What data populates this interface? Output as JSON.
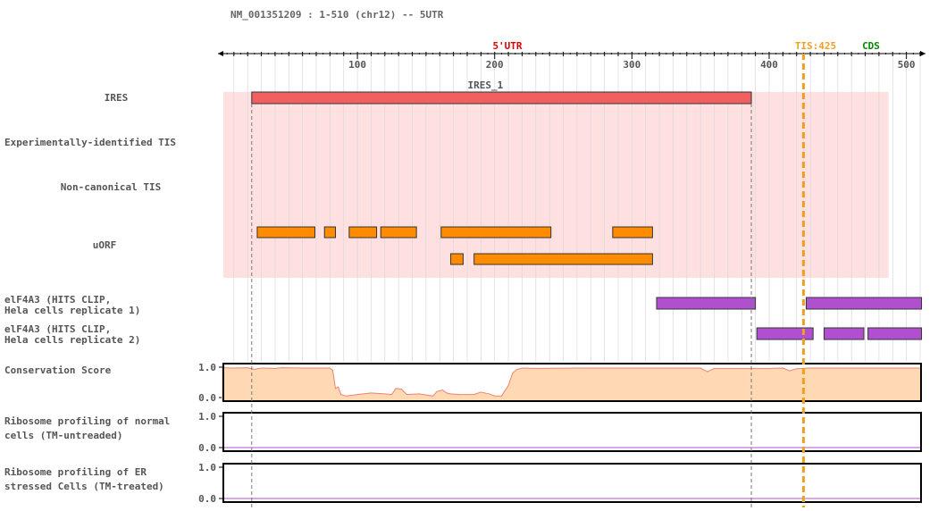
{
  "header": {
    "title": "NM_001351209 : 1-510 (chr12) -- 5UTR"
  },
  "axis": {
    "min": 1,
    "max": 510,
    "ticks": [
      100,
      200,
      300,
      400,
      500
    ],
    "minor_step": 10
  },
  "regions": {
    "utr_label": "5'UTR",
    "utr_color": "#dd0000",
    "tis_label": "TIS:425",
    "tis_position": 425,
    "tis_color": "#f0a020",
    "cds_label": "CDS",
    "cds_color": "#008800"
  },
  "ires": {
    "label": "IRES_1",
    "start": 23,
    "end": 387,
    "color": "#f06060",
    "band_start": 4,
    "band_end": 487,
    "band_color": "#ffe0e0"
  },
  "tracks": {
    "ires": "IRES",
    "exp_tis": "Experimentally-identified TIS",
    "noncanonical_tis": "Non-canonical TIS",
    "uorf": "uORF",
    "eif4a3_rep1": "elF4A3 (HITS CLIP,\nHela cells replicate 1)",
    "eif4a3_rep2": "elF4A3 (HITS CLIP,\nHela cells replicate 2)",
    "conservation": "Conservation Score",
    "ribo_normal": "Ribosome profiling of normal\ncells (TM-untreaded)",
    "ribo_er": "Ribosome profiling of ER\nstressed Cells (TM-treated)"
  },
  "uorfs": {
    "color": "#ff8c00",
    "row1": [
      [
        27,
        69
      ],
      [
        76,
        84
      ],
      [
        94,
        114
      ],
      [
        117,
        143
      ],
      [
        161,
        241
      ],
      [
        286,
        315
      ]
    ],
    "row2": [
      [
        168,
        177
      ],
      [
        185,
        315
      ]
    ]
  },
  "eif4a3": {
    "color": "#b050d0",
    "rep1": [
      [
        318,
        390
      ],
      [
        427,
        511
      ]
    ],
    "rep2": [
      [
        391,
        432
      ],
      [
        440,
        469
      ],
      [
        472,
        511
      ]
    ]
  },
  "conservation": {
    "y_max_label": "1.0",
    "y_min_label": "0.0",
    "fill": "#ffd9b3",
    "line": "#f08070",
    "points": [
      [
        1,
        0.98
      ],
      [
        10,
        0.97
      ],
      [
        20,
        0.98
      ],
      [
        25,
        0.93
      ],
      [
        30,
        0.97
      ],
      [
        40,
        0.96
      ],
      [
        45,
        0.98
      ],
      [
        60,
        0.97
      ],
      [
        80,
        0.97
      ],
      [
        82,
        0.9
      ],
      [
        84,
        0.3
      ],
      [
        86,
        0.35
      ],
      [
        88,
        0.1
      ],
      [
        92,
        0.05
      ],
      [
        100,
        0.1
      ],
      [
        110,
        0.15
      ],
      [
        120,
        0.12
      ],
      [
        125,
        0.1
      ],
      [
        128,
        0.3
      ],
      [
        132,
        0.28
      ],
      [
        136,
        0.1
      ],
      [
        145,
        0.12
      ],
      [
        155,
        0.05
      ],
      [
        158,
        0.2
      ],
      [
        162,
        0.25
      ],
      [
        165,
        0.15
      ],
      [
        168,
        0.12
      ],
      [
        175,
        0.1
      ],
      [
        185,
        0.1
      ],
      [
        190,
        0.18
      ],
      [
        196,
        0.12
      ],
      [
        200,
        0.05
      ],
      [
        205,
        0.05
      ],
      [
        210,
        0.4
      ],
      [
        213,
        0.8
      ],
      [
        216,
        0.92
      ],
      [
        220,
        0.97
      ],
      [
        230,
        0.96
      ],
      [
        260,
        0.97
      ],
      [
        300,
        0.97
      ],
      [
        350,
        0.97
      ],
      [
        355,
        0.85
      ],
      [
        360,
        0.96
      ],
      [
        400,
        0.96
      ],
      [
        410,
        0.97
      ],
      [
        415,
        0.88
      ],
      [
        420,
        0.95
      ],
      [
        430,
        0.97
      ],
      [
        460,
        0.97
      ],
      [
        500,
        0.97
      ],
      [
        510,
        0.97
      ]
    ]
  },
  "ribo": {
    "y_max_label": "1.0",
    "y_min_label": "0.0",
    "line_color": "#b050d0"
  }
}
